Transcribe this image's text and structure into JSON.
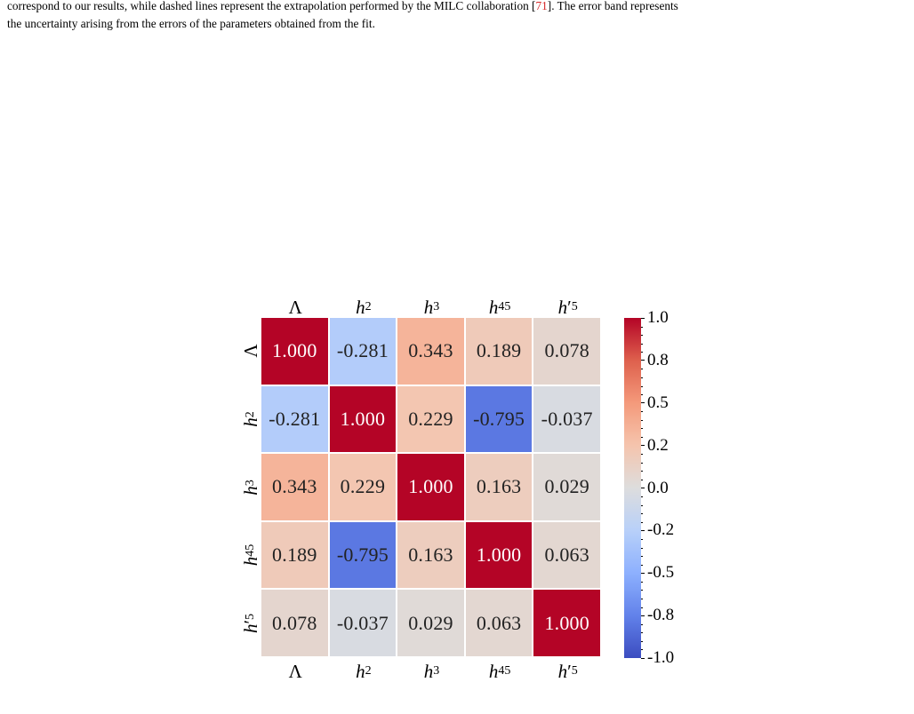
{
  "caption": {
    "line1_pre": "correspond to our results, while dashed lines represent the extrapolation performed by the MILC collaboration [",
    "line1_ref": "71",
    "line1_post": "]. The error band represents",
    "line2": "the uncertainty arising from the errors of the parameters obtained from the fit."
  },
  "chart_data": {
    "type": "heatmap",
    "title": "",
    "xlabel": "",
    "ylabel": "",
    "labels": [
      {
        "id": "Lambda",
        "base": "Λ",
        "sub": "",
        "prime": false,
        "italic": false
      },
      {
        "id": "h2",
        "base": "h",
        "sub": "2",
        "prime": false,
        "italic": true
      },
      {
        "id": "h3",
        "base": "h",
        "sub": "3",
        "prime": false,
        "italic": true
      },
      {
        "id": "h45",
        "base": "h",
        "sub": "45",
        "prime": false,
        "italic": true
      },
      {
        "id": "h5p",
        "base": "h",
        "sub": "5",
        "prime": true,
        "italic": true
      }
    ],
    "matrix": [
      [
        1.0,
        -0.281,
        0.343,
        0.189,
        0.078
      ],
      [
        -0.281,
        1.0,
        0.229,
        -0.795,
        -0.037
      ],
      [
        0.343,
        0.229,
        1.0,
        0.163,
        0.029
      ],
      [
        0.189,
        -0.795,
        0.163,
        1.0,
        0.063
      ],
      [
        0.078,
        -0.037,
        0.029,
        0.063,
        1.0
      ]
    ],
    "cell_text": [
      [
        "1.000",
        "-0.281",
        "0.343",
        "0.189",
        "0.078"
      ],
      [
        "-0.281",
        "1.000",
        "0.229",
        "-0.795",
        "-0.037"
      ],
      [
        "0.343",
        "0.229",
        "1.000",
        "0.163",
        "0.029"
      ],
      [
        "0.189",
        "-0.795",
        "0.163",
        "1.000",
        "0.063"
      ],
      [
        "0.078",
        "-0.037",
        "0.029",
        "0.063",
        "1.000"
      ]
    ],
    "colormap": "coolwarm",
    "vmin": -1.0,
    "vmax": 1.0,
    "colorbar_ticks": [
      "1.0",
      "0.8",
      "0.5",
      "0.2",
      "0.0",
      "-0.2",
      "-0.5",
      "-0.8",
      "-1.0"
    ],
    "colorbar_tick_values": [
      1.0,
      0.75,
      0.5,
      0.25,
      0.0,
      -0.25,
      -0.5,
      -0.75,
      -1.0
    ],
    "grid_lines": "white",
    "tick_labels_top": true,
    "tick_labels_bottom": true
  }
}
